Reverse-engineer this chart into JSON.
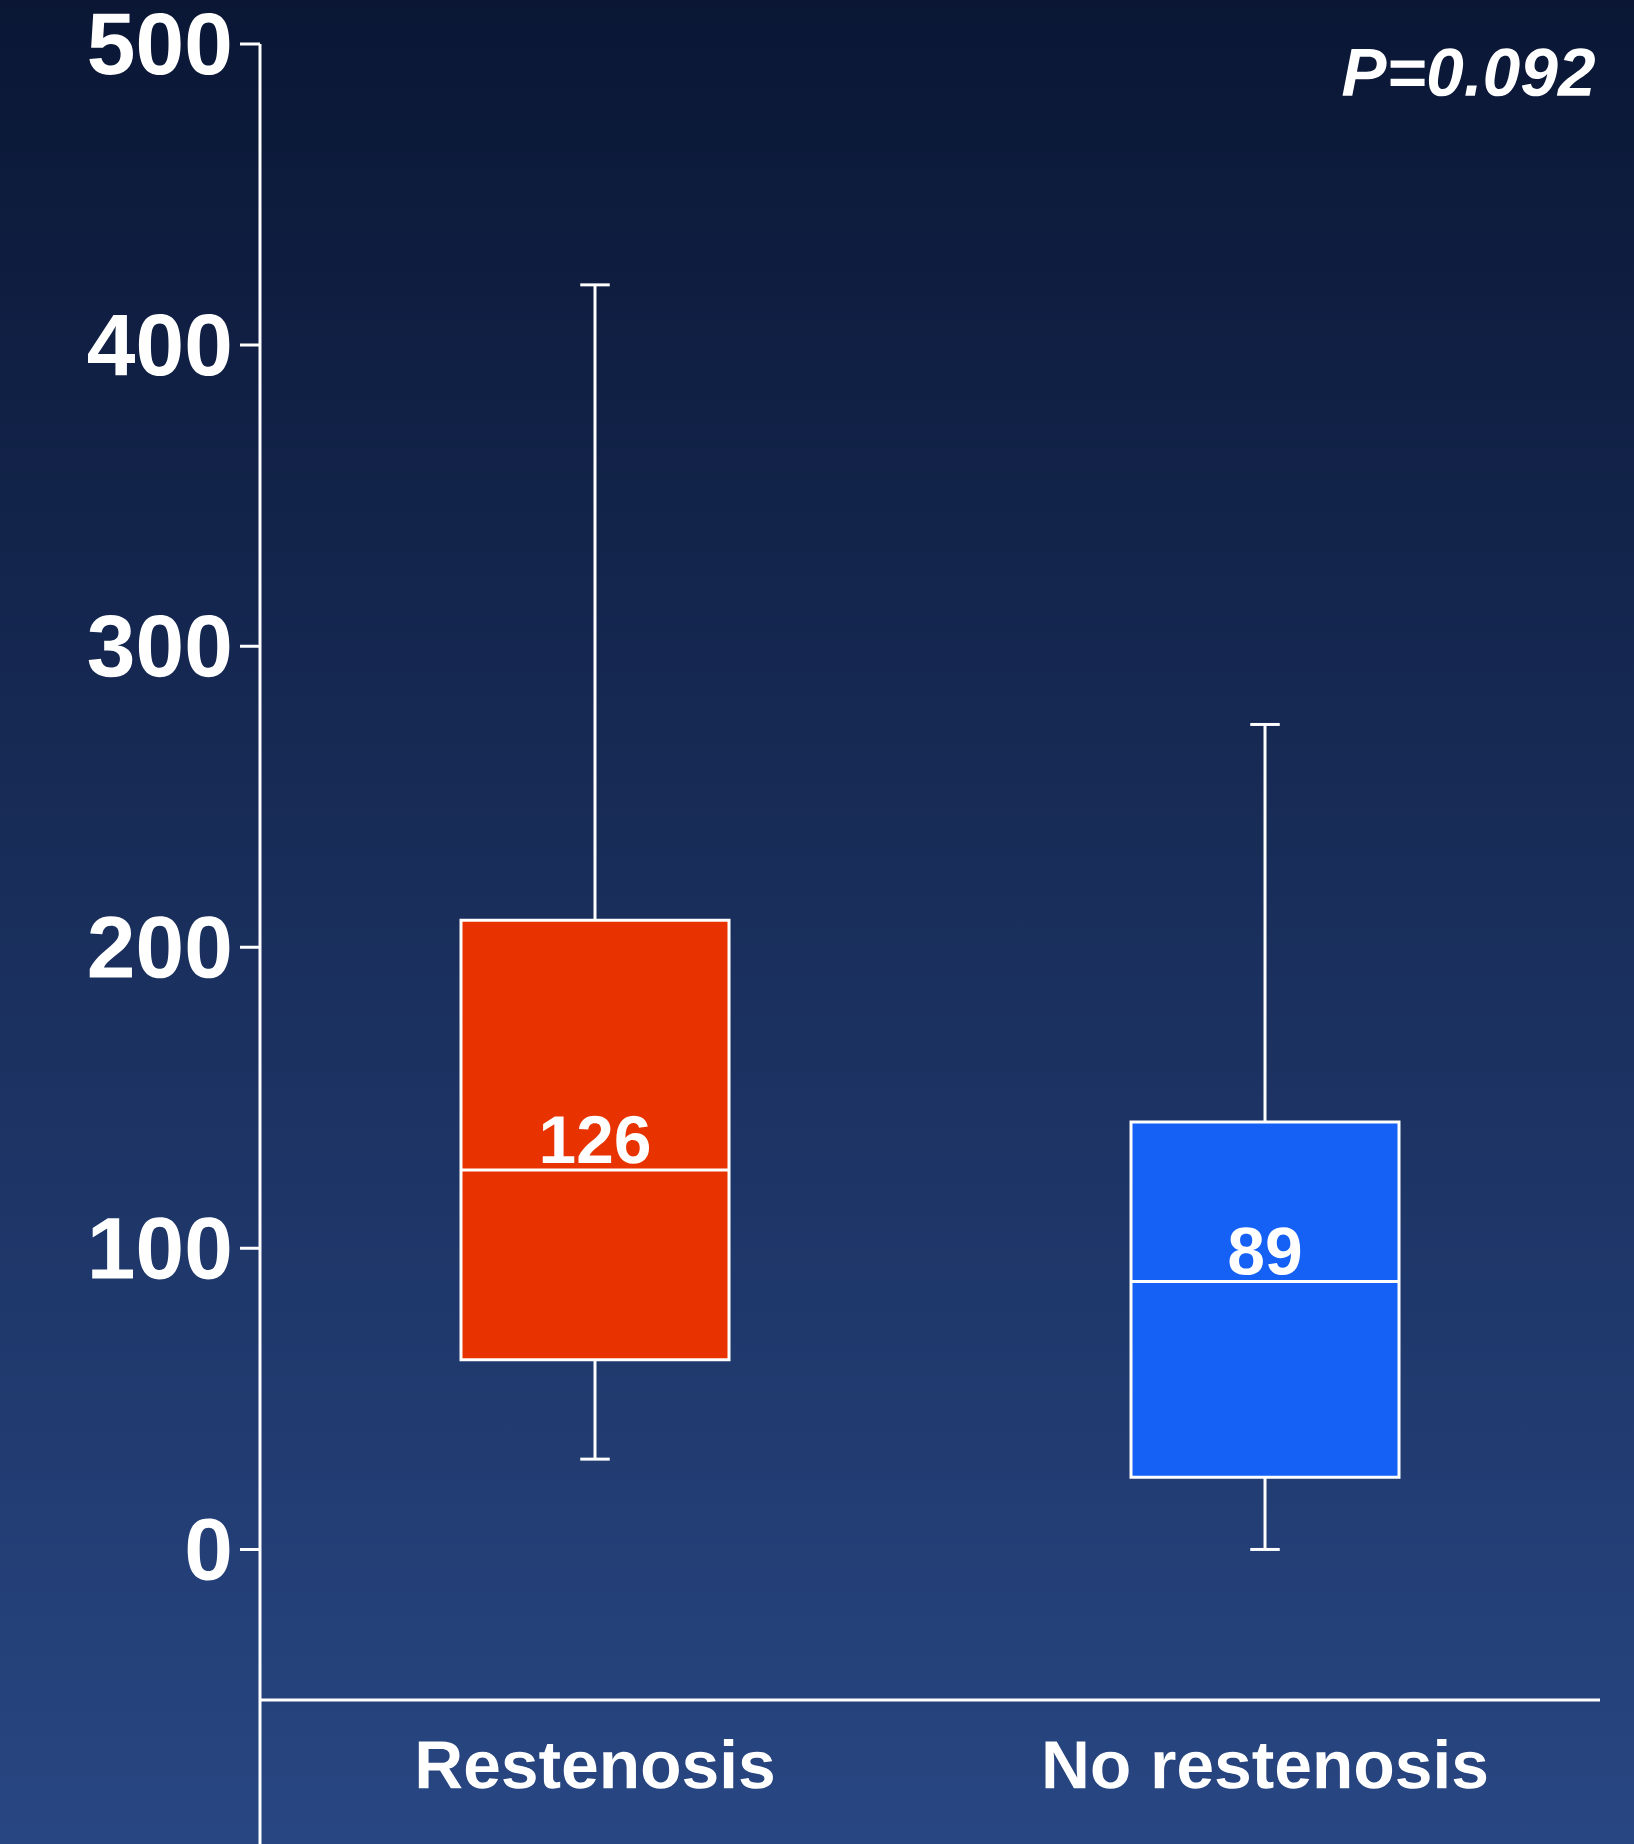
{
  "chart_data": {
    "type": "box",
    "categories": [
      "Restenosis",
      "No restenosis"
    ],
    "boxes": [
      {
        "low": 30,
        "q1": 63,
        "median": 126,
        "q3": 209,
        "high": 420
      },
      {
        "low": 0,
        "q1": 24,
        "median": 89,
        "q3": 142,
        "high": 274
      }
    ],
    "colors": [
      "#e83300",
      "#1560f5"
    ],
    "ylim": [
      -50,
      500
    ],
    "yticks": [
      0,
      100,
      200,
      300,
      400,
      500
    ],
    "annotations": [
      {
        "text": "126",
        "x": "Restenosis",
        "y": 126
      },
      {
        "text": "89",
        "x": "No restenosis",
        "y": 89
      },
      "P=0.092"
    ]
  }
}
